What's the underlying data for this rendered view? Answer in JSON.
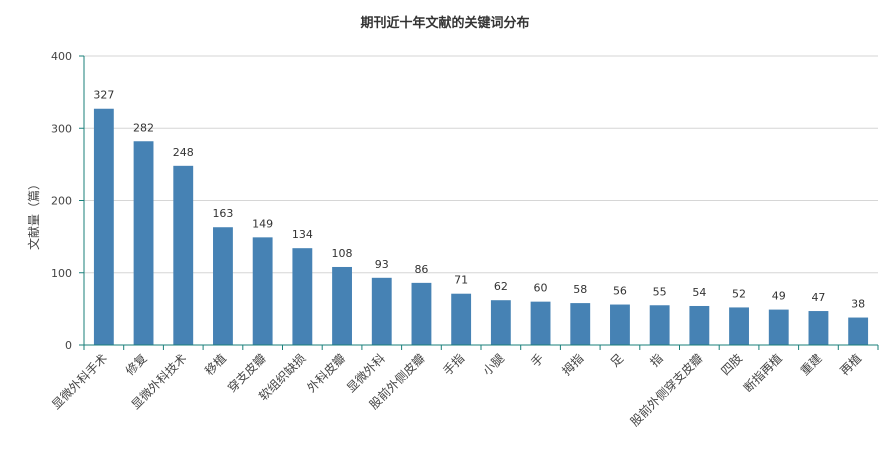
{
  "chart_data": {
    "type": "bar",
    "title": "期刊近十年文献的关键词分布",
    "xlabel": "",
    "ylabel": "文献量（篇）",
    "ylim": [
      0,
      400
    ],
    "yticks": [
      0,
      100,
      200,
      300,
      400
    ],
    "grid": true,
    "legend": "none",
    "categories": [
      "显微外科手术",
      "修复",
      "显微外科技术",
      "移植",
      "穿支皮瓣",
      "软组织缺损",
      "外科皮瓣",
      "显微外科",
      "股前外侧皮瓣",
      "手指",
      "小腿",
      "手",
      "拇指",
      "足",
      "指",
      "股前外侧穿支皮瓣",
      "四肢",
      "断指再植",
      "重建",
      "再植"
    ],
    "values": [
      327,
      282,
      248,
      163,
      149,
      134,
      108,
      93,
      86,
      71,
      62,
      60,
      58,
      56,
      55,
      54,
      52,
      49,
      47,
      38
    ],
    "bar_color": "#4682b4",
    "axis_color": "#1a7f7a"
  }
}
